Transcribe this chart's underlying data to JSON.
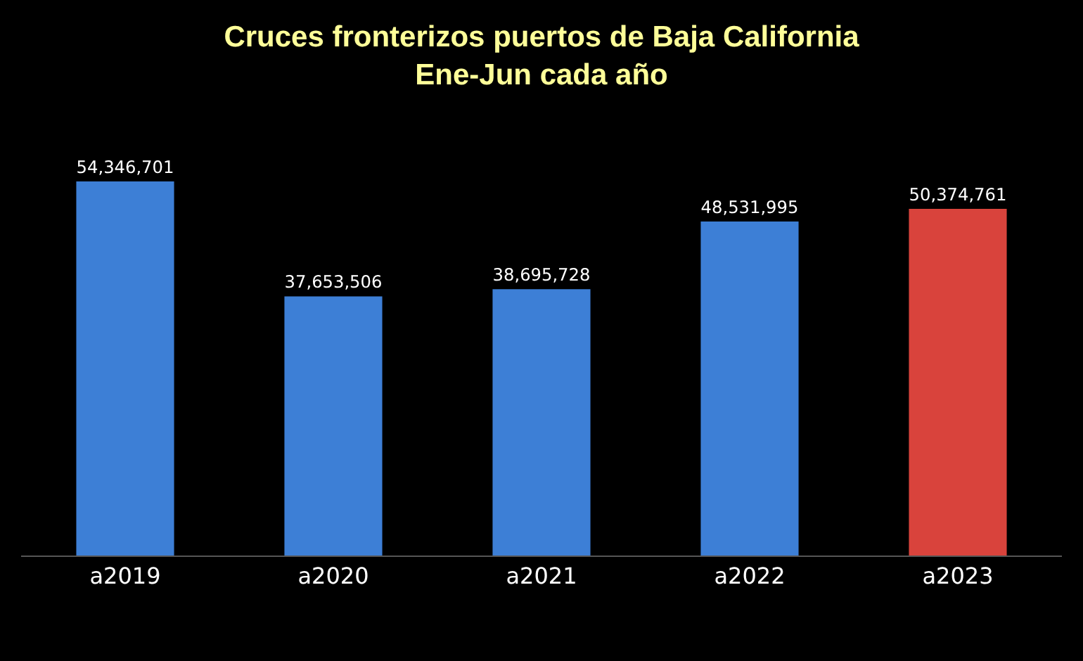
{
  "chart_data": {
    "type": "bar",
    "title": "Cruces fronterizos puertos de Baja California",
    "subtitle": "Ene-Jun cada año",
    "categories": [
      "a2019",
      "a2020",
      "a2021",
      "a2022",
      "a2023"
    ],
    "values": [
      54346701,
      37653506,
      38695728,
      48531995,
      50374761
    ],
    "value_labels": [
      "54,346,701",
      "37,653,506",
      "38,695,728",
      "48,531,995",
      "50,374,761"
    ],
    "colors": [
      "#3d7fd6",
      "#3d7fd6",
      "#3d7fd6",
      "#3d7fd6",
      "#d9433c"
    ],
    "grid": false
  }
}
